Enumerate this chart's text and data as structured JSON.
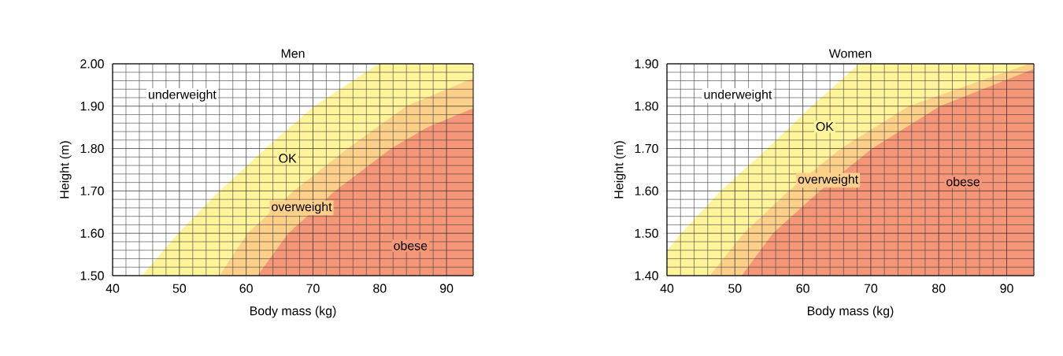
{
  "chart_data": [
    {
      "type": "area",
      "title": "Men",
      "xlabel": "Body mass (kg)",
      "ylabel": "Height (m)",
      "xlim": [
        40,
        94
      ],
      "ylim": [
        1.5,
        2.0
      ],
      "xticks": [
        40,
        50,
        60,
        70,
        80,
        90
      ],
      "yticks": [
        {
          "value": 1.5,
          "label": "1.50"
        },
        {
          "value": 1.6,
          "label": "1.60"
        },
        {
          "value": 1.7,
          "label": "1.70"
        },
        {
          "value": 1.8,
          "label": "1.80"
        },
        {
          "value": 1.9,
          "label": "1.90"
        },
        {
          "value": 2.0,
          "label": "2.00"
        }
      ],
      "grid": true,
      "series": [
        {
          "color": "#fff499",
          "x": [
            44.4,
            49.8,
            56,
            62.9,
            70.2,
            79.8,
            94
          ],
          "values": [
            1.5,
            1.6,
            1.7,
            1.8,
            1.9,
            2.0,
            2.0
          ]
        },
        {
          "color": "#fdd08a",
          "x": [
            56,
            60.2,
            67.1,
            75.2,
            84,
            94
          ],
          "values": [
            1.5,
            1.6,
            1.7,
            1.8,
            1.9,
            1.966
          ]
        },
        {
          "color": "#f49677",
          "x": [
            61.7,
            66.3,
            73.3,
            81.7,
            87.1,
            94
          ],
          "values": [
            1.5,
            1.6,
            1.7,
            1.8,
            1.85,
            1.895
          ]
        }
      ],
      "annotations": [
        "underweight",
        "OK",
        "overweight",
        "obese"
      ]
    },
    {
      "type": "area",
      "title": "Women",
      "xlabel": "Body mass (kg)",
      "ylabel": "Height (m)",
      "xlim": [
        40,
        94
      ],
      "ylim": [
        1.4,
        1.9
      ],
      "xticks": [
        40,
        50,
        60,
        70,
        80,
        90
      ],
      "yticks": [
        {
          "value": 1.4,
          "label": "1.40"
        },
        {
          "value": 1.5,
          "label": "1.50"
        },
        {
          "value": 1.6,
          "label": "1.60"
        },
        {
          "value": 1.7,
          "label": "1.70"
        },
        {
          "value": 1.8,
          "label": "1.80"
        },
        {
          "value": 1.9,
          "label": "1.90"
        }
      ],
      "grid": true,
      "series": [
        {
          "color": "#fff499",
          "x": [
            40,
            42.1,
            47.9,
            54.8,
            61.3,
            68.3,
            94
          ],
          "values": [
            1.459,
            1.5,
            1.6,
            1.7,
            1.8,
            1.9,
            1.9
          ]
        },
        {
          "color": "#fdd08a",
          "x": [
            46.3,
            51.3,
            57.9,
            65.6,
            75.6,
            93.3,
            94
          ],
          "values": [
            1.4,
            1.5,
            1.6,
            1.7,
            1.8,
            1.9,
            1.9
          ]
        },
        {
          "color": "#f49677",
          "x": [
            51,
            55.6,
            62.5,
            70.2,
            80.2,
            94
          ],
          "values": [
            1.4,
            1.5,
            1.6,
            1.7,
            1.8,
            1.888
          ]
        }
      ],
      "annotations": [
        "underweight",
        "OK",
        "overweight",
        "obese"
      ]
    }
  ]
}
